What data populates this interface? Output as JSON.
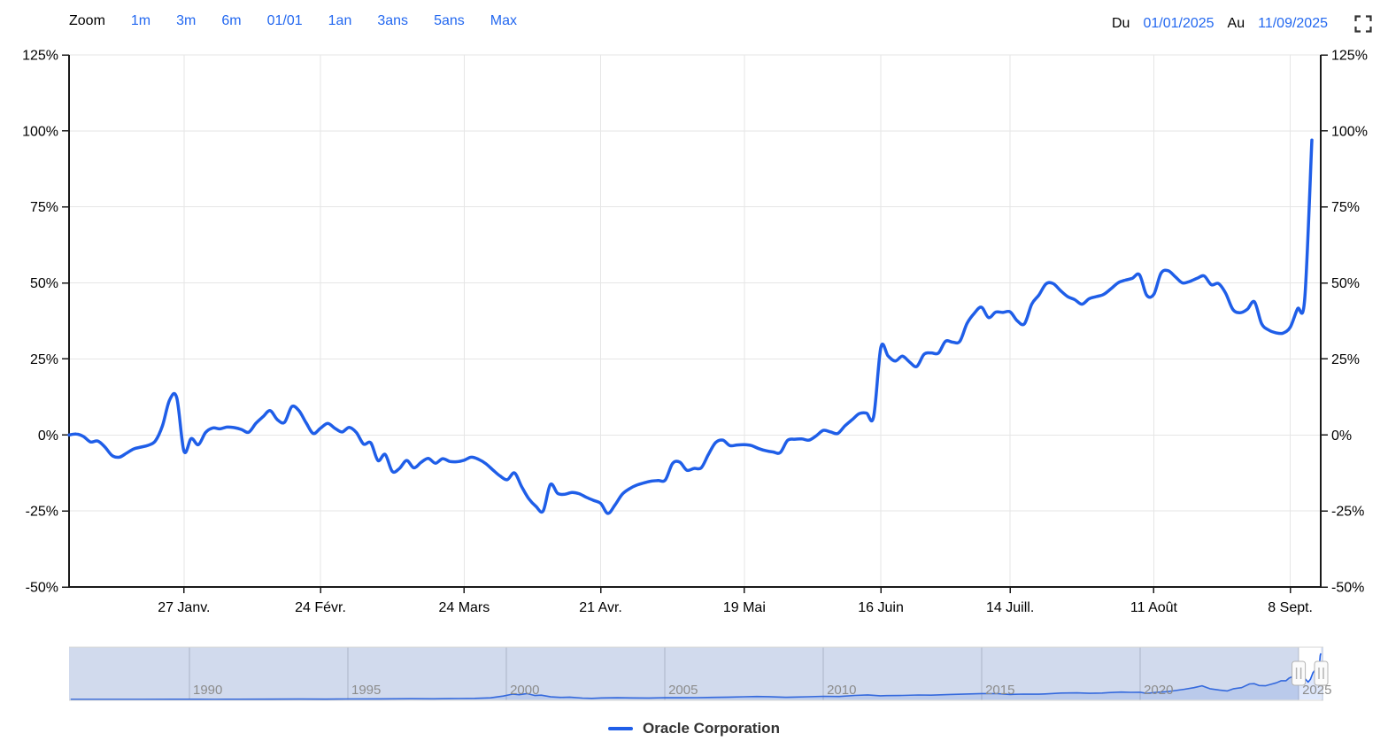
{
  "toolbar": {
    "zoom_label": "Zoom",
    "zoom_buttons": [
      "1m",
      "3m",
      "6m",
      "01/01",
      "1an",
      "3ans",
      "5ans",
      "Max"
    ],
    "from_label": "Du",
    "from_value": "01/01/2025",
    "to_label": "Au",
    "to_value": "11/09/2025",
    "fullscreen_icon": "fullscreen-corners"
  },
  "legend": {
    "label": "Oracle Corporation"
  },
  "colors": {
    "series": "#1f5ee8",
    "link": "#2368f0",
    "grid": "#e6e6e6",
    "axis": "#1a1a1a",
    "text": "#000000",
    "nav_mask": "rgba(102,133,194,0.3)",
    "nav_grid": "#c9c9c9",
    "nav_outline": "#d4d4d4",
    "nav_area": "rgba(31,94,232,0.14)",
    "year_label": "#8c8c8c",
    "handle_fill": "#fbfbfb",
    "handle_stroke": "#b3b3b3"
  },
  "chart_data": {
    "type": "line",
    "series_name": "Oracle Corporation",
    "unit": "%",
    "ylim": [
      -50,
      125
    ],
    "ytick_values": [
      125,
      100,
      75,
      50,
      25,
      0,
      -25,
      -50
    ],
    "yticks": [
      "125%",
      "100%",
      "75%",
      "50%",
      "25%",
      "0%",
      "-25%",
      "-50%"
    ],
    "grid": true,
    "legend_position": "bottom-center",
    "xticks": [
      {
        "label": "27 Janv.",
        "index": 16
      },
      {
        "label": "24 Févr.",
        "index": 35
      },
      {
        "label": "24 Mars",
        "index": 55
      },
      {
        "label": "21 Avr.",
        "index": 74
      },
      {
        "label": "19 Mai",
        "index": 94
      },
      {
        "label": "16 Juin",
        "index": 113
      },
      {
        "label": "14 Juill.",
        "index": 131
      },
      {
        "label": "11 Août",
        "index": 151
      },
      {
        "label": "8 Sept.",
        "index": 170
      }
    ],
    "dates": [
      "2025-01-02",
      "2025-01-03",
      "2025-01-06",
      "2025-01-07",
      "2025-01-08",
      "2025-01-09",
      "2025-01-10",
      "2025-01-13",
      "2025-01-14",
      "2025-01-15",
      "2025-01-16",
      "2025-01-17",
      "2025-01-21",
      "2025-01-22",
      "2025-01-23",
      "2025-01-24",
      "2025-01-27",
      "2025-01-28",
      "2025-01-29",
      "2025-01-30",
      "2025-01-31",
      "2025-02-03",
      "2025-02-04",
      "2025-02-05",
      "2025-02-06",
      "2025-02-07",
      "2025-02-10",
      "2025-02-11",
      "2025-02-12",
      "2025-02-13",
      "2025-02-14",
      "2025-02-18",
      "2025-02-19",
      "2025-02-20",
      "2025-02-21",
      "2025-02-24",
      "2025-02-25",
      "2025-02-26",
      "2025-02-27",
      "2025-02-28",
      "2025-03-03",
      "2025-03-04",
      "2025-03-05",
      "2025-03-06",
      "2025-03-07",
      "2025-03-10",
      "2025-03-11",
      "2025-03-12",
      "2025-03-13",
      "2025-03-14",
      "2025-03-17",
      "2025-03-18",
      "2025-03-19",
      "2025-03-20",
      "2025-03-21",
      "2025-03-24",
      "2025-03-25",
      "2025-03-26",
      "2025-03-27",
      "2025-03-28",
      "2025-03-31",
      "2025-04-01",
      "2025-04-02",
      "2025-04-03",
      "2025-04-04",
      "2025-04-07",
      "2025-04-08",
      "2025-04-09",
      "2025-04-10",
      "2025-04-11",
      "2025-04-14",
      "2025-04-15",
      "2025-04-16",
      "2025-04-17",
      "2025-04-21",
      "2025-04-22",
      "2025-04-23",
      "2025-04-24",
      "2025-04-25",
      "2025-04-28",
      "2025-04-29",
      "2025-04-30",
      "2025-05-01",
      "2025-05-02",
      "2025-05-05",
      "2025-05-06",
      "2025-05-07",
      "2025-05-08",
      "2025-05-09",
      "2025-05-12",
      "2025-05-13",
      "2025-05-14",
      "2025-05-15",
      "2025-05-16",
      "2025-05-19",
      "2025-05-20",
      "2025-05-21",
      "2025-05-22",
      "2025-05-23",
      "2025-05-27",
      "2025-05-28",
      "2025-05-29",
      "2025-05-30",
      "2025-06-02",
      "2025-06-03",
      "2025-06-04",
      "2025-06-05",
      "2025-06-06",
      "2025-06-09",
      "2025-06-10",
      "2025-06-11",
      "2025-06-12",
      "2025-06-13",
      "2025-06-16",
      "2025-06-17",
      "2025-06-18",
      "2025-06-20",
      "2025-06-23",
      "2025-06-24",
      "2025-06-25",
      "2025-06-26",
      "2025-06-27",
      "2025-06-30",
      "2025-07-01",
      "2025-07-02",
      "2025-07-03",
      "2025-07-07",
      "2025-07-08",
      "2025-07-09",
      "2025-07-10",
      "2025-07-11",
      "2025-07-14",
      "2025-07-15",
      "2025-07-16",
      "2025-07-17",
      "2025-07-18",
      "2025-07-21",
      "2025-07-22",
      "2025-07-23",
      "2025-07-24",
      "2025-07-25",
      "2025-07-28",
      "2025-07-29",
      "2025-07-30",
      "2025-07-31",
      "2025-08-01",
      "2025-08-04",
      "2025-08-05",
      "2025-08-06",
      "2025-08-07",
      "2025-08-08",
      "2025-08-11",
      "2025-08-12",
      "2025-08-13",
      "2025-08-14",
      "2025-08-15",
      "2025-08-18",
      "2025-08-19",
      "2025-08-20",
      "2025-08-21",
      "2025-08-22",
      "2025-08-25",
      "2025-08-26",
      "2025-08-27",
      "2025-08-28",
      "2025-08-29",
      "2025-09-02",
      "2025-09-03",
      "2025-09-04",
      "2025-09-05",
      "2025-09-08",
      "2025-09-09",
      "2025-09-10",
      "2025-09-11"
    ],
    "values": [
      0,
      0.3,
      -0.5,
      -2.3,
      -2,
      -4,
      -6.8,
      -7.3,
      -6,
      -4.6,
      -4,
      -3.4,
      -2,
      3,
      11.5,
      12.2,
      -5.3,
      -1.2,
      -3.2,
      0.8,
      2.3,
      2,
      2.6,
      2.4,
      1.8,
      0.9,
      3.8,
      6,
      8,
      5,
      4.2,
      9.3,
      8,
      4,
      0.5,
      2.2,
      3.8,
      2.2,
      1,
      2.5,
      0.8,
      -3,
      -2.6,
      -8.4,
      -6.4,
      -12,
      -11,
      -8.4,
      -10.8,
      -9,
      -7.7,
      -9.3,
      -7.8,
      -8.7,
      -8.8,
      -8.3,
      -7.3,
      -8,
      -9.4,
      -11.5,
      -13.5,
      -14.7,
      -12.5,
      -17,
      -21,
      -23.5,
      -25,
      -16.3,
      -19.2,
      -19.5,
      -18.9,
      -19.3,
      -20.5,
      -21.5,
      -22.5,
      -25.8,
      -23,
      -19.5,
      -17.7,
      -16.5,
      -15.8,
      -15.2,
      -15,
      -14.8,
      -9.4,
      -8.9,
      -11.6,
      -11,
      -10.8,
      -6.4,
      -2.5,
      -1.7,
      -3.5,
      -3.3,
      -3.2,
      -3.5,
      -4.5,
      -5.2,
      -5.6,
      -5.8,
      -1.8,
      -1.4,
      -1.3,
      -1.7,
      -0.3,
      1.5,
      1,
      0.5,
      3,
      5,
      7,
      7.2,
      6,
      28.8,
      26,
      24.3,
      25.9,
      24,
      22.5,
      26.5,
      27,
      26.9,
      30.8,
      30.5,
      30.8,
      36.7,
      40,
      42,
      38.6,
      40.4,
      40.3,
      40.5,
      37.5,
      36.6,
      43,
      46,
      49.7,
      49.8,
      47.5,
      45.5,
      44.5,
      43,
      44.8,
      45.5,
      46.2,
      48,
      50,
      50.9,
      51.5,
      52.7,
      46,
      46.3,
      53.2,
      54,
      52,
      50,
      50.5,
      51.5,
      52.3,
      49.4,
      49.8,
      46.6,
      41.3,
      40.2,
      41.3,
      43.8,
      36.6,
      34.5,
      33.6,
      33.5,
      35.5,
      41.5,
      44.7,
      97
    ],
    "navigator": {
      "x_range": [
        1986.2,
        2025.78
      ],
      "selected": [
        2025.0,
        2025.71
      ],
      "year_labels": [
        1990,
        1995,
        2000,
        2005,
        2010,
        2015,
        2020,
        2025
      ],
      "max_price": 345,
      "points": [
        [
          1986.25,
          0.6
        ],
        [
          1987.0,
          0.9
        ],
        [
          1987.8,
          0.6
        ],
        [
          1988.5,
          0.8
        ],
        [
          1989.5,
          1.2
        ],
        [
          1990.3,
          1.4
        ],
        [
          1990.8,
          0.9
        ],
        [
          1991.5,
          1.6
        ],
        [
          1992.5,
          2.0
        ],
        [
          1993.5,
          2.6
        ],
        [
          1994.3,
          2.2
        ],
        [
          1995.0,
          3.2
        ],
        [
          1996.0,
          4.2
        ],
        [
          1997.0,
          5.6
        ],
        [
          1997.7,
          4.6
        ],
        [
          1998.5,
          6.5
        ],
        [
          1999.0,
          8.0
        ],
        [
          1999.5,
          12.0
        ],
        [
          1999.9,
          25.0
        ],
        [
          2000.2,
          40.0
        ],
        [
          2000.4,
          35.0
        ],
        [
          2000.65,
          44.0
        ],
        [
          2000.9,
          29.0
        ],
        [
          2001.1,
          32.0
        ],
        [
          2001.4,
          19.0
        ],
        [
          2001.7,
          15.0
        ],
        [
          2002.0,
          17.0
        ],
        [
          2002.4,
          10.0
        ],
        [
          2002.7,
          8.0
        ],
        [
          2003.0,
          11.0
        ],
        [
          2003.5,
          12.5
        ],
        [
          2004.0,
          11.5
        ],
        [
          2004.5,
          10.5
        ],
        [
          2005.0,
          13.0
        ],
        [
          2005.5,
          12.5
        ],
        [
          2006.0,
          13.5
        ],
        [
          2006.5,
          15.0
        ],
        [
          2007.0,
          17.5
        ],
        [
          2007.5,
          20.0
        ],
        [
          2007.9,
          22.0
        ],
        [
          2008.3,
          20.5
        ],
        [
          2008.8,
          16.0
        ],
        [
          2009.0,
          17.5
        ],
        [
          2009.5,
          20.0
        ],
        [
          2010.0,
          23.0
        ],
        [
          2010.5,
          22.0
        ],
        [
          2011.0,
          30.0
        ],
        [
          2011.4,
          34.0
        ],
        [
          2011.8,
          27.0
        ],
        [
          2012.0,
          28.5
        ],
        [
          2012.5,
          30.0
        ],
        [
          2013.0,
          33.0
        ],
        [
          2013.4,
          32.0
        ],
        [
          2014.0,
          37.0
        ],
        [
          2014.5,
          40.5
        ],
        [
          2015.0,
          44.0
        ],
        [
          2015.5,
          43.0
        ],
        [
          2015.9,
          37.0
        ],
        [
          2016.3,
          40.0
        ],
        [
          2016.8,
          39.0
        ],
        [
          2017.0,
          41.0
        ],
        [
          2017.5,
          48.0
        ],
        [
          2018.0,
          49.0
        ],
        [
          2018.4,
          46.0
        ],
        [
          2018.8,
          47.5
        ],
        [
          2019.0,
          51.0
        ],
        [
          2019.4,
          55.0
        ],
        [
          2019.7,
          53.0
        ],
        [
          2020.0,
          54.0
        ],
        [
          2020.2,
          45.0
        ],
        [
          2020.5,
          53.0
        ],
        [
          2020.8,
          58.0
        ],
        [
          2021.0,
          63.0
        ],
        [
          2021.4,
          76.0
        ],
        [
          2021.7,
          88.0
        ],
        [
          2021.95,
          102.0
        ],
        [
          2022.2,
          80.0
        ],
        [
          2022.5,
          70.0
        ],
        [
          2022.75,
          64.0
        ],
        [
          2022.95,
          80.0
        ],
        [
          2023.2,
          88.0
        ],
        [
          2023.45,
          116.0
        ],
        [
          2023.6,
          118.0
        ],
        [
          2023.75,
          104.0
        ],
        [
          2023.95,
          102.0
        ],
        [
          2024.1,
          112.0
        ],
        [
          2024.3,
          125.0
        ],
        [
          2024.45,
          140.0
        ],
        [
          2024.6,
          140.0
        ],
        [
          2024.7,
          160.0
        ],
        [
          2024.85,
          175.0
        ],
        [
          2024.95,
          168.0
        ],
        [
          2025.0,
          167.0
        ],
        [
          2025.1,
          180.0
        ],
        [
          2025.2,
          155.0
        ],
        [
          2025.3,
          130.0
        ],
        [
          2025.37,
          150.0
        ],
        [
          2025.45,
          200.0
        ],
        [
          2025.55,
          230.0
        ],
        [
          2025.65,
          241.0
        ],
        [
          2025.68,
          328.0
        ],
        [
          2025.7,
          345.0
        ]
      ]
    }
  }
}
